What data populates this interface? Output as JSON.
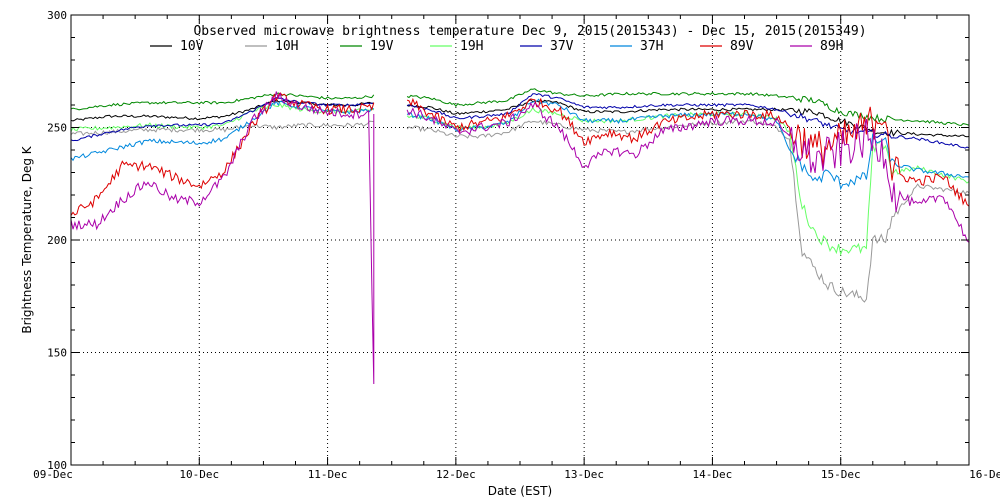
{
  "chart_data": {
    "type": "line",
    "title": "Observed microwave brightness temperature Dec  9, 2015(2015343) - Dec 15, 2015(2015349)",
    "xlabel": "Date (EST)",
    "ylabel": "Brightness Temperature, Deg K",
    "xlim": [
      0,
      7
    ],
    "ylim": [
      100,
      300
    ],
    "yticks": [
      100,
      150,
      200,
      250,
      300
    ],
    "xtick_positions": [
      0,
      1,
      2,
      3,
      4,
      5,
      6,
      7
    ],
    "xtick_labels": [
      "09-Dec",
      "10-Dec",
      "11-Dec",
      "12-Dec",
      "13-Dec",
      "14-Dec",
      "15-Dec",
      "16-Dec"
    ],
    "grid": "dotted",
    "legend_placement": "top",
    "gap": [
      2.36,
      2.62
    ],
    "series": [
      {
        "name": "10V",
        "color": "#000000",
        "points": [
          [
            0,
            253
          ],
          [
            0.3,
            255
          ],
          [
            0.6,
            255
          ],
          [
            1.0,
            254
          ],
          [
            1.2,
            255
          ],
          [
            1.4,
            258
          ],
          [
            1.6,
            262
          ],
          [
            1.8,
            261
          ],
          [
            2.0,
            260
          ],
          [
            2.2,
            260
          ],
          [
            2.36,
            261
          ],
          [
            2.62,
            260
          ],
          [
            2.8,
            259
          ],
          [
            3.0,
            256
          ],
          [
            3.2,
            257
          ],
          [
            3.4,
            258
          ],
          [
            3.6,
            262
          ],
          [
            3.8,
            261
          ],
          [
            4.0,
            257
          ],
          [
            4.3,
            257
          ],
          [
            4.6,
            258
          ],
          [
            5.0,
            258
          ],
          [
            5.3,
            258
          ],
          [
            5.5,
            258
          ],
          [
            5.8,
            257
          ],
          [
            6.0,
            253
          ],
          [
            6.3,
            248
          ],
          [
            6.6,
            247
          ],
          [
            7.0,
            246
          ]
        ]
      },
      {
        "name": "10H",
        "color": "#999999",
        "points": [
          [
            0,
            247
          ],
          [
            0.3,
            248
          ],
          [
            0.6,
            249
          ],
          [
            1.0,
            249
          ],
          [
            1.2,
            249
          ],
          [
            1.4,
            251
          ],
          [
            1.6,
            250
          ],
          [
            1.8,
            251
          ],
          [
            2.0,
            251
          ],
          [
            2.2,
            251
          ],
          [
            2.36,
            252
          ],
          [
            2.62,
            250
          ],
          [
            2.8,
            249
          ],
          [
            3.0,
            246
          ],
          [
            3.2,
            246
          ],
          [
            3.4,
            248
          ],
          [
            3.6,
            253
          ],
          [
            3.8,
            251
          ],
          [
            4.0,
            249
          ],
          [
            4.3,
            248
          ],
          [
            4.6,
            250
          ],
          [
            5.0,
            252
          ],
          [
            5.3,
            253
          ],
          [
            5.5,
            250
          ],
          [
            5.6,
            245
          ],
          [
            5.7,
            195
          ],
          [
            5.8,
            187
          ],
          [
            5.9,
            180
          ],
          [
            6.0,
            177
          ],
          [
            6.2,
            174
          ],
          [
            6.25,
            200
          ],
          [
            6.35,
            200
          ],
          [
            6.4,
            210
          ],
          [
            6.6,
            224
          ],
          [
            7.0,
            221
          ]
        ]
      },
      {
        "name": "19V",
        "color": "#008800",
        "points": [
          [
            0,
            258
          ],
          [
            0.3,
            260
          ],
          [
            0.6,
            261
          ],
          [
            1.0,
            261
          ],
          [
            1.2,
            261
          ],
          [
            1.4,
            263
          ],
          [
            1.6,
            265
          ],
          [
            1.8,
            264
          ],
          [
            2.0,
            263
          ],
          [
            2.2,
            263
          ],
          [
            2.36,
            264
          ],
          [
            2.62,
            264
          ],
          [
            2.8,
            263
          ],
          [
            3.0,
            260
          ],
          [
            3.2,
            261
          ],
          [
            3.4,
            262
          ],
          [
            3.6,
            267
          ],
          [
            3.8,
            265
          ],
          [
            4.0,
            264
          ],
          [
            4.3,
            265
          ],
          [
            4.6,
            265
          ],
          [
            5.0,
            265
          ],
          [
            5.3,
            265
          ],
          [
            5.5,
            264
          ],
          [
            5.8,
            262
          ],
          [
            6.0,
            257
          ],
          [
            6.3,
            254
          ],
          [
            6.6,
            253
          ],
          [
            7.0,
            251
          ]
        ]
      },
      {
        "name": "19H",
        "color": "#66ff66",
        "points": [
          [
            0,
            249
          ],
          [
            0.3,
            250
          ],
          [
            0.6,
            251
          ],
          [
            1.0,
            250
          ],
          [
            1.2,
            251
          ],
          [
            1.4,
            257
          ],
          [
            1.6,
            260
          ],
          [
            1.8,
            258
          ],
          [
            2.0,
            257
          ],
          [
            2.2,
            257
          ],
          [
            2.36,
            258
          ],
          [
            2.62,
            255
          ],
          [
            2.8,
            254
          ],
          [
            3.0,
            250
          ],
          [
            3.2,
            250
          ],
          [
            3.4,
            252
          ],
          [
            3.6,
            258
          ],
          [
            3.8,
            256
          ],
          [
            4.0,
            253
          ],
          [
            4.3,
            253
          ],
          [
            4.6,
            255
          ],
          [
            5.0,
            256
          ],
          [
            5.3,
            256
          ],
          [
            5.5,
            254
          ],
          [
            5.6,
            248
          ],
          [
            5.7,
            215
          ],
          [
            5.8,
            203
          ],
          [
            5.9,
            198
          ],
          [
            6.0,
            196
          ],
          [
            6.2,
            196
          ],
          [
            6.25,
            240
          ],
          [
            6.35,
            243
          ],
          [
            6.4,
            230
          ],
          [
            6.6,
            232
          ],
          [
            7.0,
            226
          ]
        ]
      },
      {
        "name": "37V",
        "color": "#0000aa",
        "points": [
          [
            0,
            244
          ],
          [
            0.3,
            248
          ],
          [
            0.6,
            251
          ],
          [
            1.0,
            251
          ],
          [
            1.2,
            252
          ],
          [
            1.4,
            257
          ],
          [
            1.6,
            263
          ],
          [
            1.8,
            261
          ],
          [
            2.0,
            260
          ],
          [
            2.2,
            260
          ],
          [
            2.36,
            261
          ],
          [
            2.62,
            260
          ],
          [
            2.8,
            258
          ],
          [
            3.0,
            254
          ],
          [
            3.2,
            255
          ],
          [
            3.4,
            256
          ],
          [
            3.6,
            265
          ],
          [
            3.8,
            263
          ],
          [
            4.0,
            259
          ],
          [
            4.3,
            259
          ],
          [
            4.6,
            260
          ],
          [
            5.0,
            260
          ],
          [
            5.3,
            260
          ],
          [
            5.5,
            258
          ],
          [
            5.8,
            253
          ],
          [
            6.0,
            249
          ],
          [
            6.3,
            247
          ],
          [
            6.6,
            245
          ],
          [
            7.0,
            241
          ]
        ]
      },
      {
        "name": "37H",
        "color": "#0088dd",
        "points": [
          [
            0,
            236
          ],
          [
            0.3,
            240
          ],
          [
            0.6,
            244
          ],
          [
            1.0,
            243
          ],
          [
            1.2,
            245
          ],
          [
            1.4,
            253
          ],
          [
            1.6,
            261
          ],
          [
            1.8,
            259
          ],
          [
            2.0,
            257
          ],
          [
            2.2,
            257
          ],
          [
            2.36,
            258
          ],
          [
            2.62,
            256
          ],
          [
            2.8,
            254
          ],
          [
            3.0,
            249
          ],
          [
            3.2,
            250
          ],
          [
            3.4,
            252
          ],
          [
            3.6,
            262
          ],
          [
            3.8,
            260
          ],
          [
            4.0,
            253
          ],
          [
            4.3,
            253
          ],
          [
            4.6,
            255
          ],
          [
            5.0,
            256
          ],
          [
            5.3,
            256
          ],
          [
            5.5,
            253
          ],
          [
            5.6,
            240
          ],
          [
            5.7,
            233
          ],
          [
            5.8,
            226
          ],
          [
            5.9,
            230
          ],
          [
            6.0,
            225
          ],
          [
            6.2,
            228
          ],
          [
            6.25,
            245
          ],
          [
            6.35,
            243
          ],
          [
            6.4,
            234
          ],
          [
            6.6,
            231
          ],
          [
            7.0,
            228
          ]
        ]
      },
      {
        "name": "89V",
        "color": "#dd0000",
        "points": [
          [
            0,
            211
          ],
          [
            0.2,
            218
          ],
          [
            0.4,
            233
          ],
          [
            0.6,
            233
          ],
          [
            0.8,
            228
          ],
          [
            1.0,
            224
          ],
          [
            1.2,
            231
          ],
          [
            1.4,
            250
          ],
          [
            1.6,
            264
          ],
          [
            1.8,
            260
          ],
          [
            2.0,
            258
          ],
          [
            2.2,
            258
          ],
          [
            2.36,
            259
          ],
          [
            2.62,
            262
          ],
          [
            2.8,
            256
          ],
          [
            3.0,
            250
          ],
          [
            3.2,
            252
          ],
          [
            3.4,
            255
          ],
          [
            3.6,
            262
          ],
          [
            3.8,
            258
          ],
          [
            4.0,
            244
          ],
          [
            4.2,
            248
          ],
          [
            4.4,
            245
          ],
          [
            4.6,
            252
          ],
          [
            5.0,
            256
          ],
          [
            5.3,
            256
          ],
          [
            5.5,
            255
          ],
          [
            5.6,
            250
          ],
          [
            5.7,
            245
          ],
          [
            5.8,
            240
          ],
          [
            6.0,
            244
          ],
          [
            6.2,
            250
          ],
          [
            6.35,
            258
          ],
          [
            6.4,
            230
          ],
          [
            6.6,
            226
          ],
          [
            6.8,
            228
          ],
          [
            7.0,
            215
          ]
        ]
      },
      {
        "name": "89H",
        "color": "#aa00aa",
        "points": [
          [
            0,
            207
          ],
          [
            0.2,
            207
          ],
          [
            0.4,
            218
          ],
          [
            0.6,
            226
          ],
          [
            0.8,
            218
          ],
          [
            1.0,
            217
          ],
          [
            1.2,
            228
          ],
          [
            1.4,
            252
          ],
          [
            1.6,
            264
          ],
          [
            1.8,
            259
          ],
          [
            2.0,
            257
          ],
          [
            2.2,
            256
          ],
          [
            2.32,
            257
          ],
          [
            2.36,
            136
          ],
          [
            2.36,
            256
          ],
          [
            2.62,
            258
          ],
          [
            2.8,
            254
          ],
          [
            3.0,
            248
          ],
          [
            3.2,
            250
          ],
          [
            3.4,
            252
          ],
          [
            3.6,
            260
          ],
          [
            3.8,
            250
          ],
          [
            4.0,
            233
          ],
          [
            4.2,
            240
          ],
          [
            4.4,
            238
          ],
          [
            4.6,
            248
          ],
          [
            5.0,
            253
          ],
          [
            5.3,
            253
          ],
          [
            5.5,
            252
          ],
          [
            5.6,
            245
          ],
          [
            5.7,
            240
          ],
          [
            5.8,
            235
          ],
          [
            6.0,
            240
          ],
          [
            6.2,
            245
          ],
          [
            6.35,
            240
          ],
          [
            6.4,
            222
          ],
          [
            6.6,
            215
          ],
          [
            6.8,
            220
          ],
          [
            7.0,
            199
          ]
        ]
      }
    ]
  }
}
